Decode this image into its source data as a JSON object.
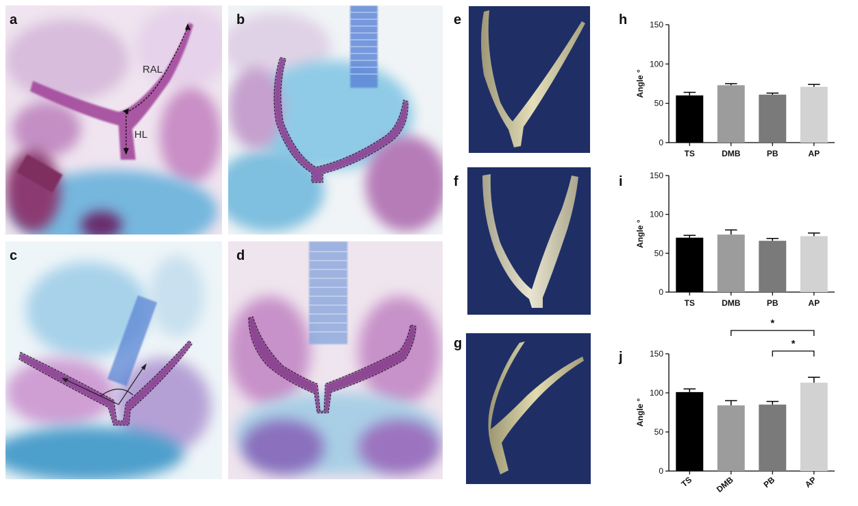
{
  "figure": {
    "panel_labels": {
      "a": "a",
      "b": "b",
      "c": "c",
      "d": "d",
      "e": "e",
      "f": "f",
      "g": "g",
      "h": "h",
      "i": "i",
      "j": "j"
    },
    "annotations": {
      "ral": "RAL",
      "hl": "HL"
    },
    "colors": {
      "stain_purple": "#8a3f86",
      "stain_blue": "#5fb2d9",
      "render_bg": "#1f2f66",
      "render_bone": "#d6d0a6"
    }
  },
  "chart_data": [
    {
      "type": "bar",
      "panel": "h",
      "ylabel": "Angle °",
      "categories": [
        "TS",
        "DMB",
        "PB",
        "AP"
      ],
      "values": [
        60,
        73,
        61,
        71
      ],
      "errors": [
        4,
        2,
        2,
        3
      ],
      "ylim": [
        0,
        150
      ],
      "yticks": [
        "0",
        "50",
        "100",
        "150"
      ],
      "colors": [
        "#000000",
        "#9c9c9c",
        "#7a7a7a",
        "#d2d2d2"
      ],
      "rotated_xticks": false,
      "significance": []
    },
    {
      "type": "bar",
      "panel": "i",
      "ylabel": "Angle °",
      "categories": [
        "TS",
        "DMB",
        "PB",
        "AP"
      ],
      "values": [
        70,
        74,
        66,
        72
      ],
      "errors": [
        3,
        6,
        3,
        4
      ],
      "ylim": [
        0,
        150
      ],
      "yticks": [
        "0",
        "50",
        "100",
        "150"
      ],
      "colors": [
        "#000000",
        "#9c9c9c",
        "#7a7a7a",
        "#d2d2d2"
      ],
      "rotated_xticks": false,
      "significance": []
    },
    {
      "type": "bar",
      "panel": "j",
      "ylabel": "Angle °",
      "categories": [
        "TS",
        "DMB",
        "PB",
        "AP"
      ],
      "values": [
        101,
        84,
        85,
        113
      ],
      "errors": [
        4,
        6,
        4,
        7
      ],
      "ylim": [
        0,
        150
      ],
      "yticks": [
        "0",
        "50",
        "100",
        "150"
      ],
      "colors": [
        "#000000",
        "#9c9c9c",
        "#7a7a7a",
        "#d2d2d2"
      ],
      "rotated_xticks": true,
      "significance": [
        {
          "from": "DMB",
          "to": "AP",
          "label": "*"
        },
        {
          "from": "PB",
          "to": "AP",
          "label": "*"
        }
      ]
    }
  ]
}
